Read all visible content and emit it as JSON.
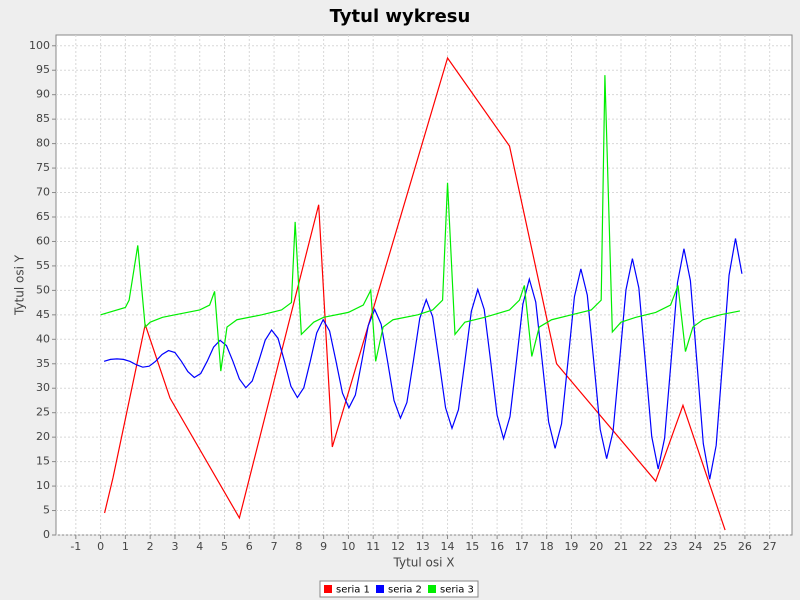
{
  "chart_data": {
    "type": "line",
    "title": "Tytul wykresu",
    "x_label": "Tytul osi X",
    "y_label": "Tytul osi Y",
    "xlim": [
      -1.8,
      27.9
    ],
    "ylim": [
      0,
      102.2
    ],
    "xticks": [
      -1,
      0,
      1,
      2,
      3,
      4,
      5,
      6,
      7,
      8,
      9,
      10,
      11,
      12,
      13,
      14,
      15,
      16,
      17,
      18,
      19,
      20,
      21,
      22,
      23,
      24,
      25,
      26,
      27
    ],
    "yticks": [
      0,
      5,
      10,
      15,
      20,
      25,
      30,
      35,
      40,
      45,
      50,
      55,
      60,
      65,
      70,
      75,
      80,
      85,
      90,
      95,
      100
    ],
    "grid": true,
    "legend": "bottom",
    "series": [
      {
        "name": "seria 1",
        "color": "#ff0000",
        "x": [
          0.16,
          0.5,
          1.8,
          2.8,
          5.6,
          8.8,
          9.35,
          14.0,
          16.5,
          18.4,
          22.4,
          23.5,
          25.2
        ],
        "values": [
          4.5,
          11.7,
          43,
          28,
          3.5,
          67.5,
          18,
          97.5,
          79.5,
          35,
          11,
          26.5,
          1
        ]
      },
      {
        "name": "seria 2",
        "color": "#0000ff",
        "x": [
          0.14,
          0.4,
          0.66,
          0.92,
          1.18,
          1.44,
          1.7,
          1.96,
          2.22,
          2.48,
          2.74,
          3.0,
          3.26,
          3.52,
          3.78,
          4.04,
          4.3,
          4.56,
          4.82,
          5.08,
          5.34,
          5.6,
          5.86,
          6.12,
          6.38,
          6.64,
          6.9,
          7.16,
          7.42,
          7.68,
          7.94,
          8.2,
          8.46,
          8.72,
          8.98,
          9.24,
          9.5,
          9.76,
          10.02,
          10.28,
          10.54,
          10.8,
          11.06,
          11.32,
          11.58,
          11.84,
          12.1,
          12.36,
          12.62,
          12.88,
          13.14,
          13.4,
          13.66,
          13.92,
          14.18,
          14.44,
          14.7,
          14.96,
          15.22,
          15.48,
          15.74,
          16.0,
          16.26,
          16.52,
          16.78,
          17.04,
          17.3,
          17.56,
          17.82,
          18.08,
          18.34,
          18.6,
          18.86,
          19.12,
          19.38,
          19.64,
          19.9,
          20.16,
          20.42,
          20.68,
          20.94,
          21.2,
          21.46,
          21.72,
          21.98,
          22.24,
          22.5,
          22.76,
          23.02,
          23.28,
          23.54,
          23.8,
          24.06,
          24.32,
          24.58,
          24.84,
          25.1,
          25.36,
          25.62,
          25.88
        ],
        "values": [
          35.5,
          35.9,
          36.0,
          35.9,
          35.5,
          34.8,
          34.3,
          34.5,
          35.5,
          36.9,
          37.7,
          37.3,
          35.5,
          33.4,
          32.2,
          33.0,
          35.5,
          38.4,
          39.8,
          38.7,
          35.5,
          31.9,
          30.1,
          31.5,
          35.5,
          39.8,
          41.9,
          40.2,
          35.5,
          30.4,
          28.1,
          30.1,
          35.5,
          41.3,
          44.0,
          41.7,
          35.5,
          29.0,
          26.0,
          28.6,
          35.5,
          42.8,
          46.1,
          43.1,
          35.5,
          27.5,
          23.9,
          27.1,
          35.5,
          44.3,
          48.1,
          44.6,
          35.5,
          26.0,
          21.8,
          25.6,
          35.5,
          45.7,
          50.2,
          46.1,
          35.5,
          24.5,
          19.7,
          24.2,
          35.5,
          47.2,
          52.3,
          47.6,
          35.5,
          23.1,
          17.7,
          22.7,
          35.5,
          48.7,
          54.4,
          49.0,
          35.5,
          21.6,
          15.6,
          21.2,
          35.5,
          50.1,
          56.5,
          50.5,
          35.5,
          20.1,
          13.5,
          19.8,
          35.5,
          51.6,
          58.5,
          52.0,
          35.5,
          18.7,
          11.4,
          18.3,
          35.5,
          53.1,
          60.6,
          53.4
        ]
      },
      {
        "name": "seria 3",
        "color": "#00ee00",
        "x": [
          0,
          1.0,
          1.15,
          1.5,
          1.8,
          2.0,
          2.5,
          3.0,
          4.0,
          4.4,
          4.6,
          4.85,
          5.1,
          5.5,
          6.5,
          7.3,
          7.7,
          7.85,
          8.1,
          8.6,
          9.0,
          10.0,
          10.6,
          10.9,
          11.1,
          11.4,
          11.8,
          12.8,
          13.4,
          13.8,
          14.0,
          14.3,
          14.7,
          15.5,
          16.5,
          16.9,
          17.1,
          17.4,
          17.7,
          18.2,
          19.0,
          19.8,
          20.2,
          20.35,
          20.65,
          21.0,
          21.6,
          22.4,
          23.0,
          23.3,
          23.6,
          23.9,
          24.3,
          25.0,
          25.8
        ],
        "values": [
          45,
          46.5,
          48,
          59.2,
          42.5,
          43.5,
          44.5,
          45,
          46,
          47,
          49.8,
          33.5,
          42.5,
          44,
          45,
          46,
          47.5,
          64,
          41,
          43.5,
          44.5,
          45.5,
          47,
          50,
          35.5,
          42.5,
          44,
          45,
          46,
          48,
          72,
          41,
          43.5,
          44.5,
          46,
          48,
          51,
          36.5,
          42.5,
          44,
          45,
          46,
          48,
          94,
          41.5,
          43.5,
          44.5,
          45.5,
          47,
          51,
          37.5,
          42.5,
          44,
          45,
          45.8
        ]
      }
    ]
  }
}
